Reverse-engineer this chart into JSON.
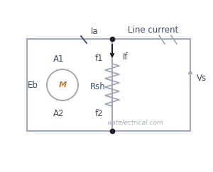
{
  "bg_color": "#ffffff",
  "line_color": "#a0a8b8",
  "text_color": "#3a4a6a",
  "motor_outline": "#a0a8b8",
  "resistor_color": "#a0a8b8",
  "junction_color": "#1a1a2a",
  "watermark": "watelectrical.com",
  "watermark_color": "#a0b0c0",
  "label_Ia": "Ia",
  "label_If": "If",
  "label_LineCurrent": "Line current",
  "label_A1": "A1",
  "label_A2": "A2",
  "label_Eb": "Eb",
  "label_f1": "f1",
  "label_f2": "f2",
  "label_Rsh": "Rsh",
  "label_Vs": "Vs",
  "motor_letter": "M",
  "motor_letter_color": "#cc7722",
  "tick_color": "#a0a8b8",
  "arrow_color": "#a0a8b8"
}
